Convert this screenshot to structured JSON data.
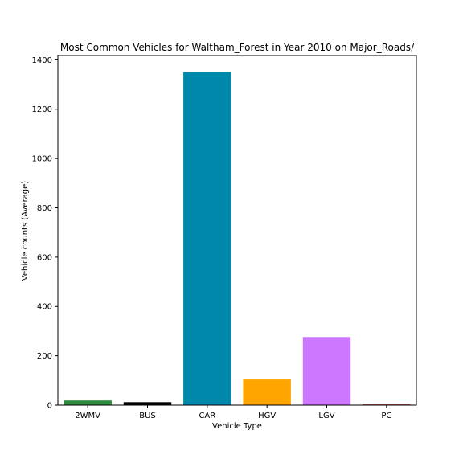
{
  "chart_data": {
    "type": "bar",
    "title": "Most Common Vehicles for Waltham_Forest in Year 2010 on Major_Roads/",
    "xlabel": "Vehicle Type",
    "ylabel": "Vehicle counts (Average)",
    "categories": [
      "2WMV",
      "BUS",
      "CAR",
      "HGV",
      "LGV",
      "PC"
    ],
    "values": [
      19,
      12,
      1350,
      104,
      276,
      3
    ],
    "colors": [
      "#2e8b41",
      "#000000",
      "#0088aa",
      "#ffa500",
      "#cc77ff",
      "#cc3333"
    ],
    "ylim": [
      0,
      1417.5
    ],
    "yticks": [
      0,
      200,
      400,
      600,
      800,
      1000,
      1200,
      1400
    ],
    "grid": false,
    "legend": "none"
  }
}
